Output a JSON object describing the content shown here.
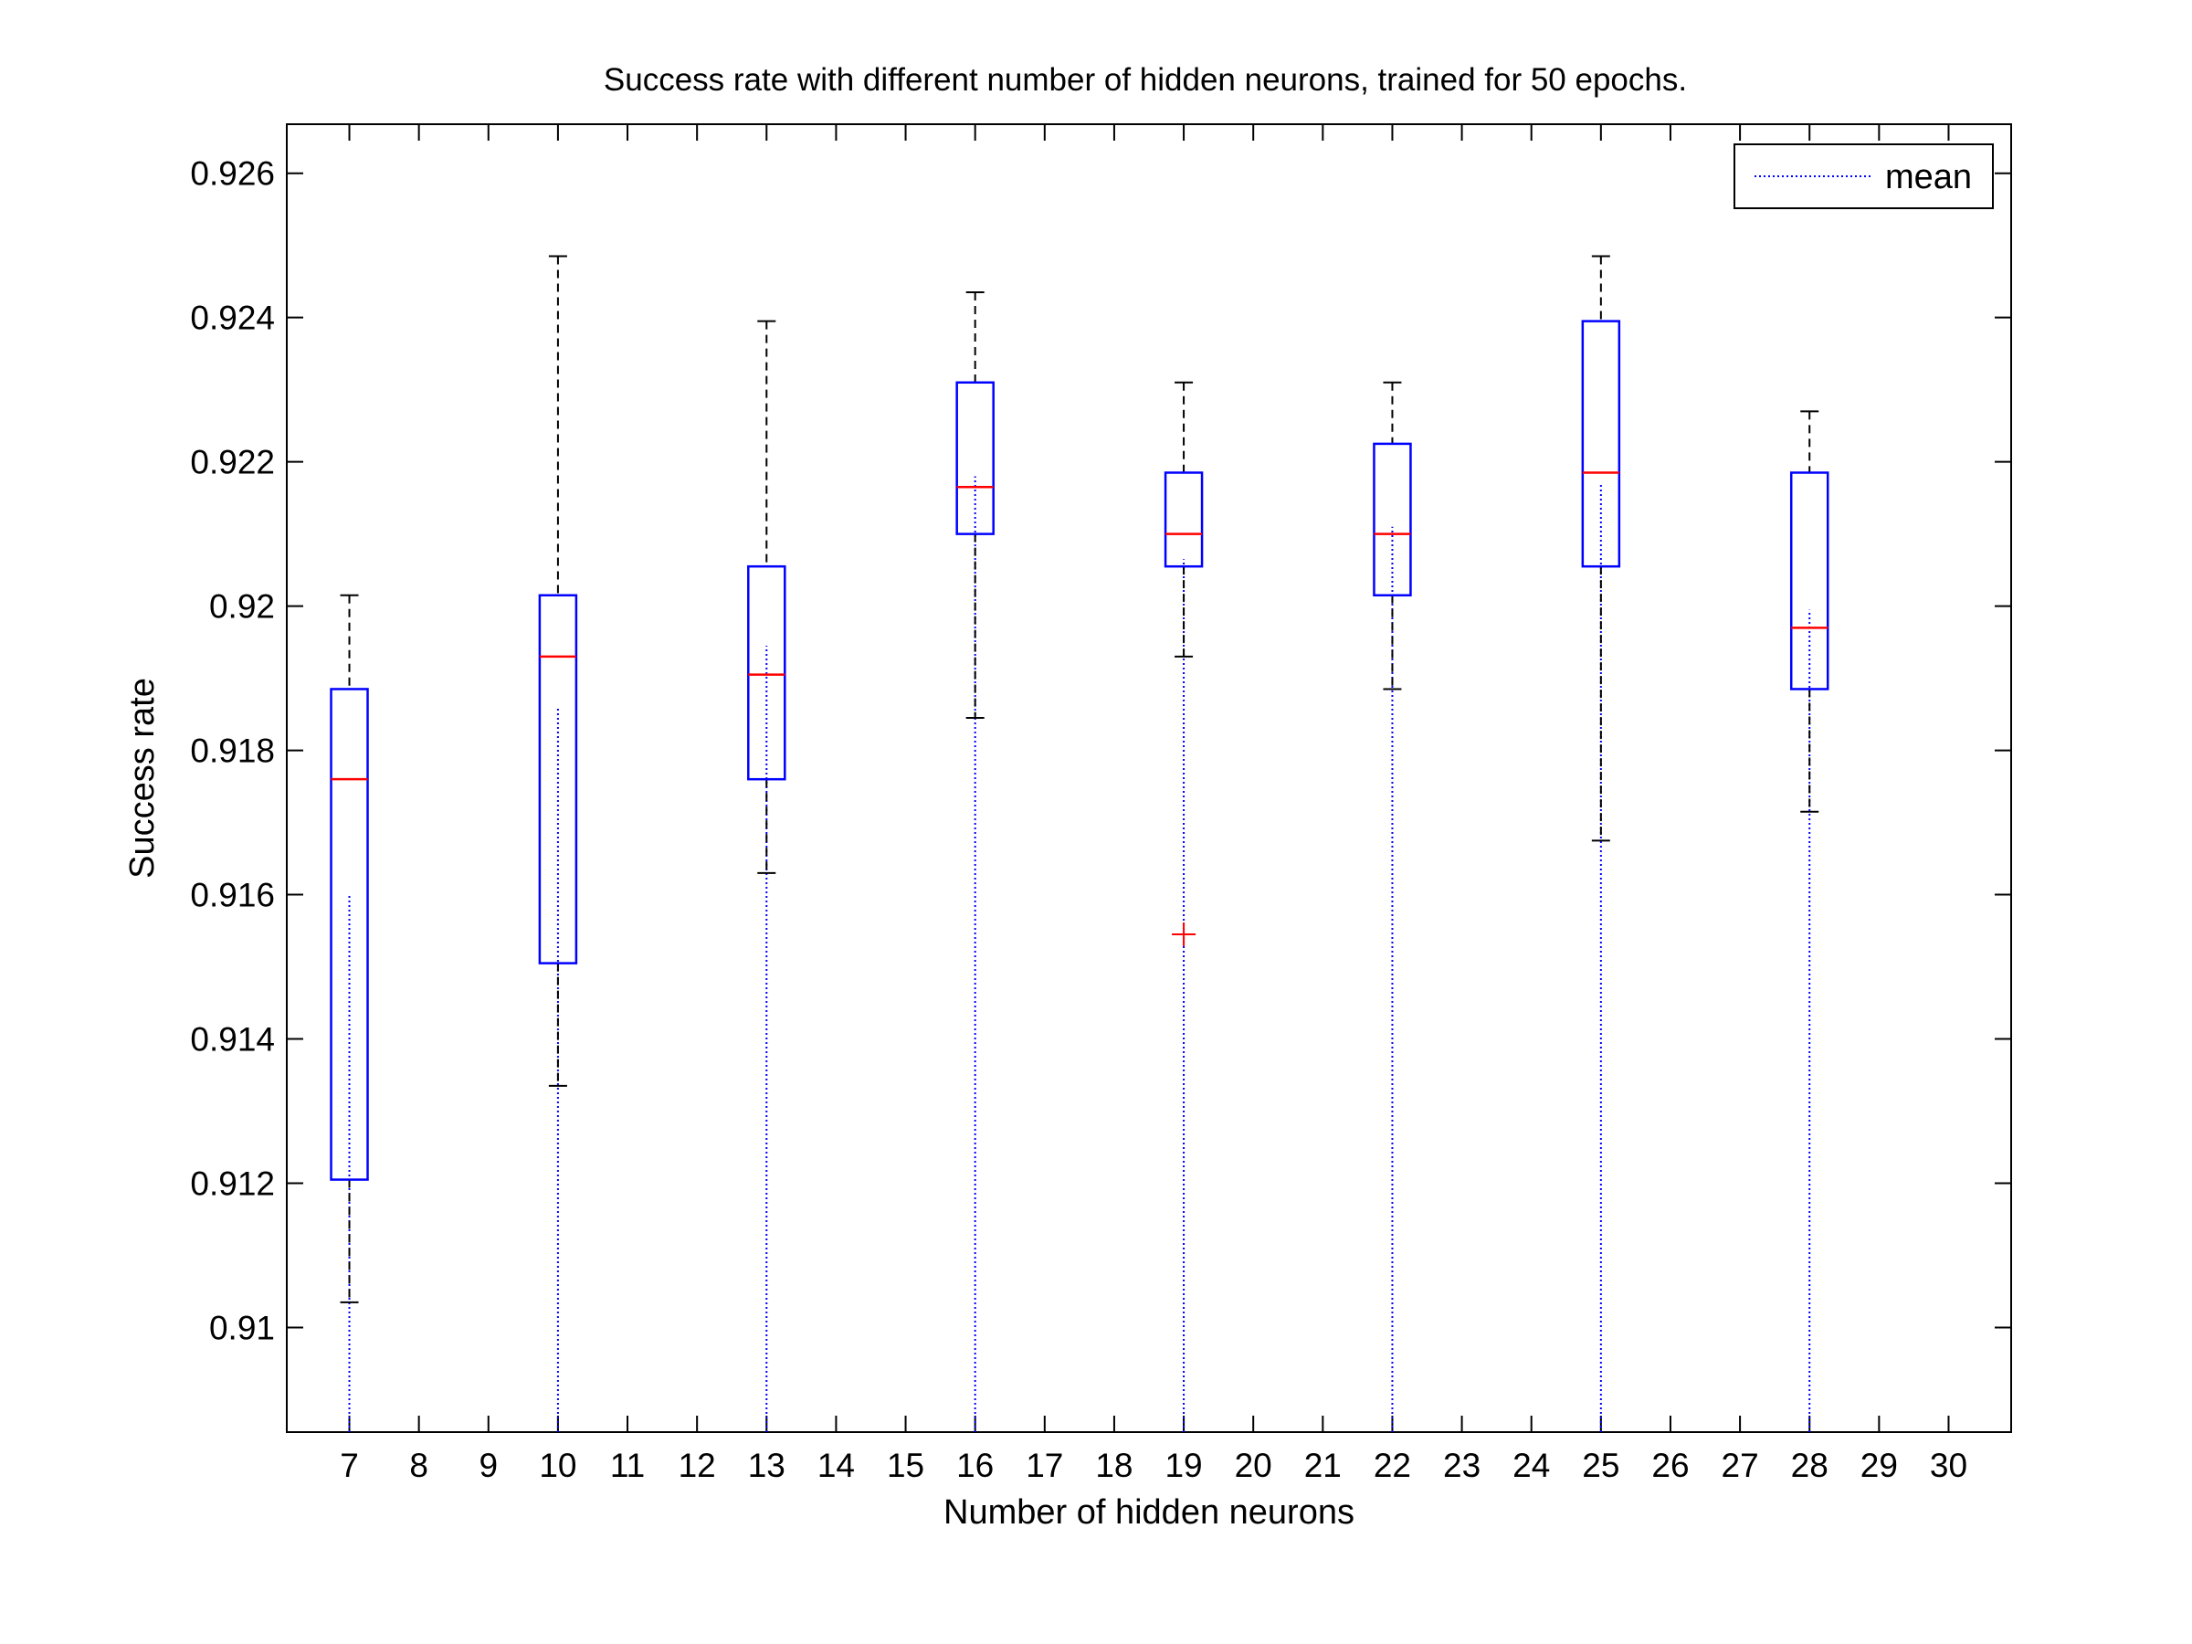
{
  "chart_data": {
    "type": "box",
    "title": "Success rate with different number of hidden neurons, trained for 50 epochs.",
    "xlabel": "Number of hidden neurons",
    "ylabel": "Success rate",
    "xlim": [
      6.1,
      30.9
    ],
    "ylim": [
      0.90855,
      0.92668
    ],
    "x_ticks": [
      7,
      8,
      9,
      10,
      11,
      12,
      13,
      14,
      15,
      16,
      17,
      18,
      19,
      20,
      21,
      22,
      23,
      24,
      25,
      26,
      27,
      28,
      29,
      30
    ],
    "y_ticks": [
      0.91,
      0.912,
      0.914,
      0.916,
      0.918,
      0.92,
      0.922,
      0.924,
      0.926
    ],
    "y_tick_labels": [
      "0.91",
      "0.912",
      "0.914",
      "0.916",
      "0.918",
      "0.92",
      "0.922",
      "0.924",
      "0.926"
    ],
    "legend": {
      "position": "top-right",
      "entries": [
        "mean"
      ]
    },
    "boxes": [
      {
        "x": 7,
        "whisker_low": 0.91035,
        "q1": 0.91205,
        "median": 0.9176,
        "q3": 0.91885,
        "whisker_high": 0.92015,
        "outliers": [],
        "mean": 0.916
      },
      {
        "x": 10,
        "whisker_low": 0.91335,
        "q1": 0.91505,
        "median": 0.9193,
        "q3": 0.92015,
        "whisker_high": 0.92485,
        "outliers": [],
        "mean": 0.9186
      },
      {
        "x": 13,
        "whisker_low": 0.9163,
        "q1": 0.9176,
        "median": 0.91905,
        "q3": 0.92055,
        "whisker_high": 0.92395,
        "outliers": [],
        "mean": 0.91945
      },
      {
        "x": 16,
        "whisker_low": 0.91845,
        "q1": 0.921,
        "median": 0.92165,
        "q3": 0.9231,
        "whisker_high": 0.92435,
        "outliers": [],
        "mean": 0.9218
      },
      {
        "x": 19,
        "whisker_low": 0.9193,
        "q1": 0.92055,
        "median": 0.921,
        "q3": 0.92185,
        "whisker_high": 0.9231,
        "outliers": [
          0.91545
        ],
        "mean": 0.92065
      },
      {
        "x": 22,
        "whisker_low": 0.91885,
        "q1": 0.92015,
        "median": 0.921,
        "q3": 0.92225,
        "whisker_high": 0.9231,
        "outliers": [],
        "mean": 0.9211
      },
      {
        "x": 25,
        "whisker_low": 0.91675,
        "q1": 0.92055,
        "median": 0.92185,
        "q3": 0.92395,
        "whisker_high": 0.92485,
        "outliers": [],
        "mean": 0.9217
      },
      {
        "x": 28,
        "whisker_low": 0.91715,
        "q1": 0.91885,
        "median": 0.9197,
        "q3": 0.92185,
        "whisker_high": 0.9227,
        "outliers": [],
        "mean": 0.91995
      }
    ],
    "colors": {
      "box": "#0000ff",
      "median": "#ff0000",
      "whisker": "#000000",
      "outlier": "#ff0000",
      "mean": "#0000ff"
    }
  }
}
